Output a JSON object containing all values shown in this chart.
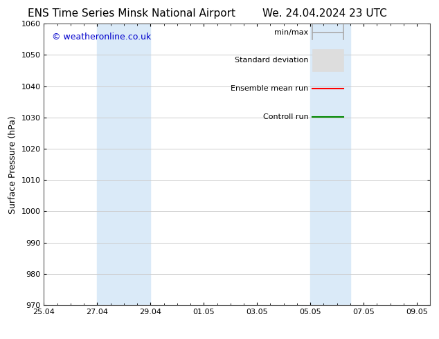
{
  "title_left": "ENS Time Series Minsk National Airport",
  "title_right": "We. 24.04.2024 23 UTC",
  "ylabel": "Surface Pressure (hPa)",
  "ylim": [
    970,
    1060
  ],
  "yticks": [
    970,
    980,
    990,
    1000,
    1010,
    1020,
    1030,
    1040,
    1050,
    1060
  ],
  "xlabel_ticks": [
    "25.04",
    "27.04",
    "29.04",
    "01.05",
    "03.05",
    "05.05",
    "07.05",
    "09.05"
  ],
  "x_tick_positions": [
    0,
    2,
    4,
    6,
    8,
    10,
    12,
    14
  ],
  "xlim": [
    0,
    14.5
  ],
  "shaded_bands": [
    {
      "x_start": 2.0,
      "x_end": 4.0
    },
    {
      "x_start": 10.0,
      "x_end": 11.5
    }
  ],
  "band_color": "#daeaf8",
  "watermark_text": "© weatheronline.co.uk",
  "watermark_color": "#0000cc",
  "legend_labels": [
    "min/max",
    "Standard deviation",
    "Ensemble mean run",
    "Controll run"
  ],
  "legend_line_colors": [
    "#aaaaaa",
    "#cccccc",
    "#ff0000",
    "#008800"
  ],
  "background_color": "#ffffff",
  "grid_color": "#cccccc",
  "title_fontsize": 11,
  "axis_label_fontsize": 9,
  "tick_fontsize": 8,
  "watermark_fontsize": 9,
  "legend_fontsize": 8
}
